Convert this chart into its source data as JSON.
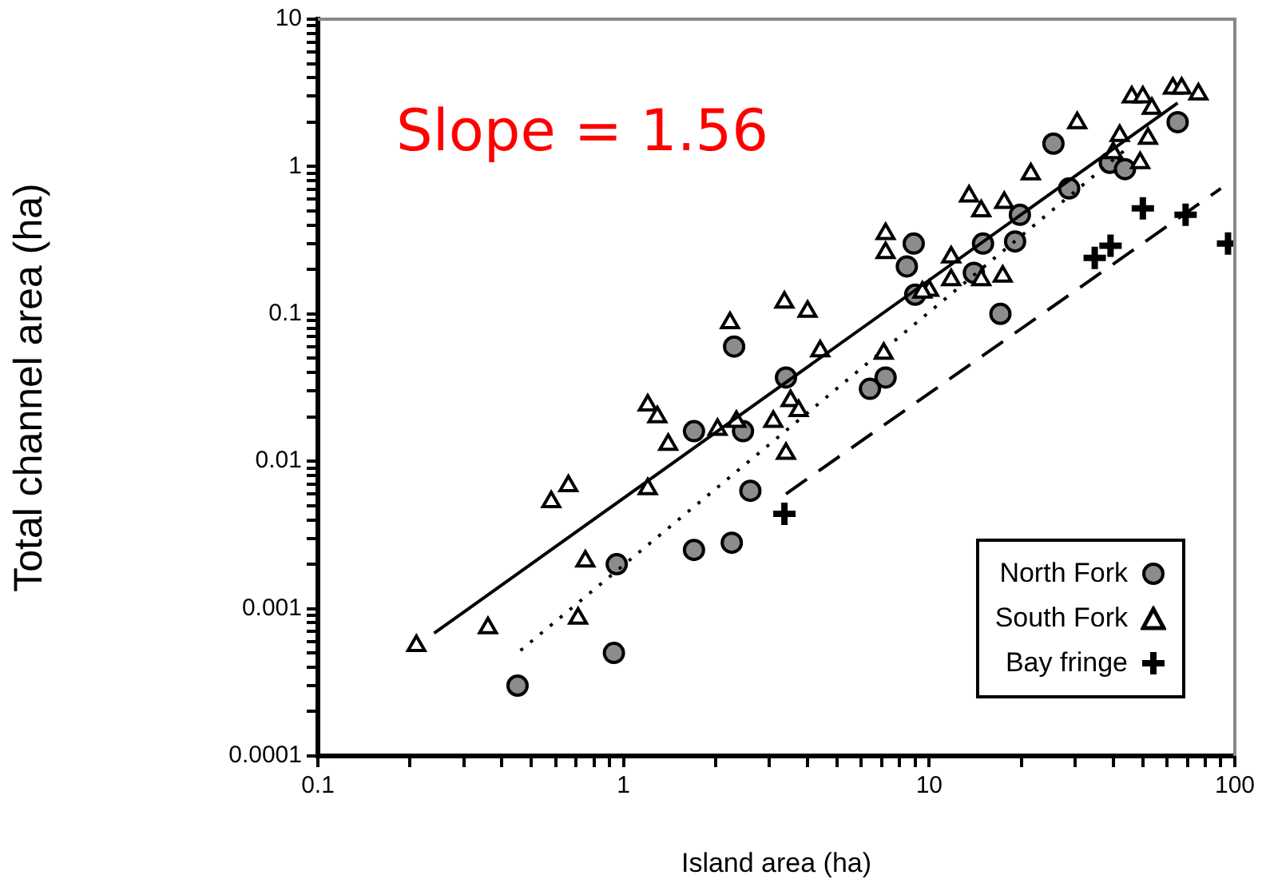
{
  "chart_data": {
    "type": "scatter",
    "xlabel": "Island area (ha)",
    "ylabel": "Total channel area (ha)",
    "annotations": [
      "Slope = 1.56"
    ],
    "xlim": [
      0.1,
      100
    ],
    "ylim": [
      0.0001,
      10
    ],
    "log": "xy",
    "grid": false,
    "legend": "bottom right",
    "xticks": [
      0.1,
      {
        "value": 0.2,
        "label": null
      },
      {
        "value": 0.3,
        "label": null
      },
      {
        "value": 0.4,
        "label": null
      },
      {
        "value": 0.5,
        "label": null
      },
      {
        "value": 0.6,
        "label": null
      },
      {
        "value": 0.7,
        "label": null
      },
      {
        "value": 0.8,
        "label": null
      },
      {
        "value": 0.9,
        "label": null
      },
      1,
      {
        "value": 2,
        "label": null
      },
      {
        "value": 3,
        "label": null
      },
      {
        "value": 4,
        "label": null
      },
      {
        "value": 5,
        "label": null
      },
      {
        "value": 6,
        "label": null
      },
      {
        "value": 7,
        "label": null
      },
      {
        "value": 8,
        "label": null
      },
      {
        "value": 9,
        "label": null
      },
      10,
      {
        "value": 20,
        "label": null
      },
      {
        "value": 30,
        "label": null
      },
      {
        "value": 40,
        "label": null
      },
      {
        "value": 50,
        "label": null
      },
      {
        "value": 60,
        "label": null
      },
      {
        "value": 70,
        "label": null
      },
      {
        "value": 80,
        "label": null
      },
      {
        "value": 90,
        "label": null
      },
      100
    ],
    "yticks": [
      0.0001,
      {
        "value": 0.0002,
        "label": null
      },
      {
        "value": 0.0003,
        "label": null
      },
      {
        "value": 0.0004,
        "label": null
      },
      {
        "value": 0.0005,
        "label": null
      },
      {
        "value": 0.0006,
        "label": null
      },
      {
        "value": 0.0007,
        "label": null
      },
      {
        "value": 0.0008,
        "label": null
      },
      {
        "value": 0.0009,
        "label": null
      },
      0.001,
      {
        "value": 0.002,
        "label": null
      },
      {
        "value": 0.003,
        "label": null
      },
      {
        "value": 0.004,
        "label": null
      },
      {
        "value": 0.005,
        "label": null
      },
      {
        "value": 0.006,
        "label": null
      },
      {
        "value": 0.007,
        "label": null
      },
      {
        "value": 0.008,
        "label": null
      },
      {
        "value": 0.009,
        "label": null
      },
      0.01,
      {
        "value": 0.02,
        "label": null
      },
      {
        "value": 0.03,
        "label": null
      },
      {
        "value": 0.04,
        "label": null
      },
      {
        "value": 0.05,
        "label": null
      },
      {
        "value": 0.06,
        "label": null
      },
      {
        "value": 0.07,
        "label": null
      },
      {
        "value": 0.08,
        "label": null
      },
      {
        "value": 0.09,
        "label": null
      },
      0.1,
      {
        "value": 0.2,
        "label": null
      },
      {
        "value": 0.3,
        "label": null
      },
      {
        "value": 0.4,
        "label": null
      },
      {
        "value": 0.5,
        "label": null
      },
      {
        "value": 0.6,
        "label": null
      },
      {
        "value": 0.7,
        "label": null
      },
      {
        "value": 0.8,
        "label": null
      },
      {
        "value": 0.9,
        "label": null
      },
      1,
      {
        "value": 2,
        "label": null
      },
      {
        "value": 3,
        "label": null
      },
      {
        "value": 4,
        "label": null
      },
      {
        "value": 5,
        "label": null
      },
      {
        "value": 6,
        "label": null
      },
      {
        "value": 7,
        "label": null
      },
      {
        "value": 8,
        "label": null
      },
      {
        "value": 9,
        "label": null
      },
      10
    ],
    "series": [
      {
        "name": "North Fork",
        "marker": "circle",
        "color": "#8c8c8c",
        "x": [
          0.45,
          0.93,
          0.95,
          1.7,
          2.26,
          2.6,
          1.7,
          2.46,
          3.4,
          2.3,
          6.4,
          7.2,
          9,
          8.45,
          8.9,
          14,
          17.1,
          15,
          19.1,
          19.8,
          28.7,
          25.5,
          39,
          43.7,
          65
        ],
        "values": [
          0.0003,
          0.0005,
          0.002,
          0.0025,
          0.0028,
          0.0063,
          0.016,
          0.016,
          0.037,
          0.06,
          0.031,
          0.037,
          0.135,
          0.21,
          0.3,
          0.19,
          0.1,
          0.3,
          0.31,
          0.47,
          0.71,
          1.43,
          1.06,
          0.96,
          2.0
        ]
      },
      {
        "name": "South Fork",
        "marker": "triangle",
        "color": "#000000",
        "x": [
          0.21,
          0.36,
          0.71,
          0.75,
          0.58,
          0.66,
          1.2,
          1.2,
          1.29,
          1.4,
          2.03,
          2.34,
          3.09,
          3.52,
          3.74,
          3.4,
          2.23,
          3.36,
          4.0,
          4.4,
          7.1,
          7.2,
          7.2,
          10,
          9.5,
          11.8,
          11.8,
          13.5,
          14.8,
          14.8,
          17.6,
          17.4,
          21.5,
          30.5,
          42,
          40,
          49,
          52,
          46,
          50,
          53.5,
          62.7,
          67,
          76
        ],
        "values": [
          0.00056,
          0.00074,
          0.00086,
          0.0021,
          0.0053,
          0.0068,
          0.0065,
          0.024,
          0.02,
          0.013,
          0.0164,
          0.0186,
          0.0186,
          0.0257,
          0.022,
          0.0113,
          0.087,
          0.12,
          0.104,
          0.056,
          0.054,
          0.35,
          0.26,
          0.144,
          0.14,
          0.243,
          0.17,
          0.63,
          0.5,
          0.17,
          0.57,
          0.18,
          0.89,
          1.98,
          1.62,
          1.24,
          1.06,
          1.55,
          2.96,
          2.96,
          2.48,
          3.4,
          3.4,
          3.1
        ]
      },
      {
        "name": "Bay fringe",
        "marker": "cross",
        "color": "#000000",
        "x": [
          3.36,
          34.8,
          39.2,
          50,
          69,
          95
        ],
        "values": [
          0.0044,
          0.24,
          0.29,
          0.52,
          0.47,
          0.3
        ]
      },
      {
        "type": "line",
        "marker": "none",
        "line_style": "solid",
        "color": "#000000",
        "x": [
          0.24,
          65
        ],
        "values": [
          0.00068,
          2.7
        ]
      },
      {
        "type": "line",
        "marker": "none",
        "line_style": "dotted",
        "color": "#000000",
        "x": [
          0.46,
          45
        ],
        "values": [
          0.00052,
          1.36
        ]
      },
      {
        "type": "line",
        "marker": "none",
        "line_style": "dashed",
        "color": "#000000",
        "x": [
          3.4,
          90
        ],
        "values": [
          0.006,
          0.71
        ]
      }
    ]
  }
}
